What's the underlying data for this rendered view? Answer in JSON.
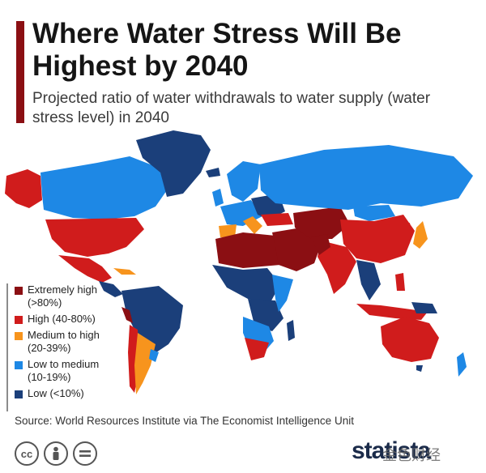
{
  "header": {
    "title": "Where Water Stress Will Be Highest by 2040",
    "subtitle": "Projected ratio of water withdrawals to water supply (water stress level) in 2040"
  },
  "colors": {
    "accent": "#8b0f13",
    "extremely_high": "#8b0f13",
    "high": "#d01c1c",
    "medium_high": "#f7941d",
    "low_medium": "#1e88e5",
    "low": "#1b3f7a"
  },
  "legend": [
    {
      "label": "Extremely high",
      "range": "(>80%)",
      "color": "#8b0f13"
    },
    {
      "label": "High (40-80%)",
      "range": "",
      "color": "#d01c1c"
    },
    {
      "label": "Medium to high",
      "range": "(20-39%)",
      "color": "#f7941d"
    },
    {
      "label": "Low to medium",
      "range": "(10-19%)",
      "color": "#1e88e5"
    },
    {
      "label": "Low (<10%)",
      "range": "",
      "color": "#1b3f7a"
    }
  ],
  "footer": {
    "source": "Source: World Resources Institute via The Economist Intelligence Unit",
    "license_icons": [
      "cc-icon",
      "person-attribution-icon",
      "equals-no-derivatives-icon"
    ],
    "brand": "statista",
    "watermark": "金色财经"
  }
}
